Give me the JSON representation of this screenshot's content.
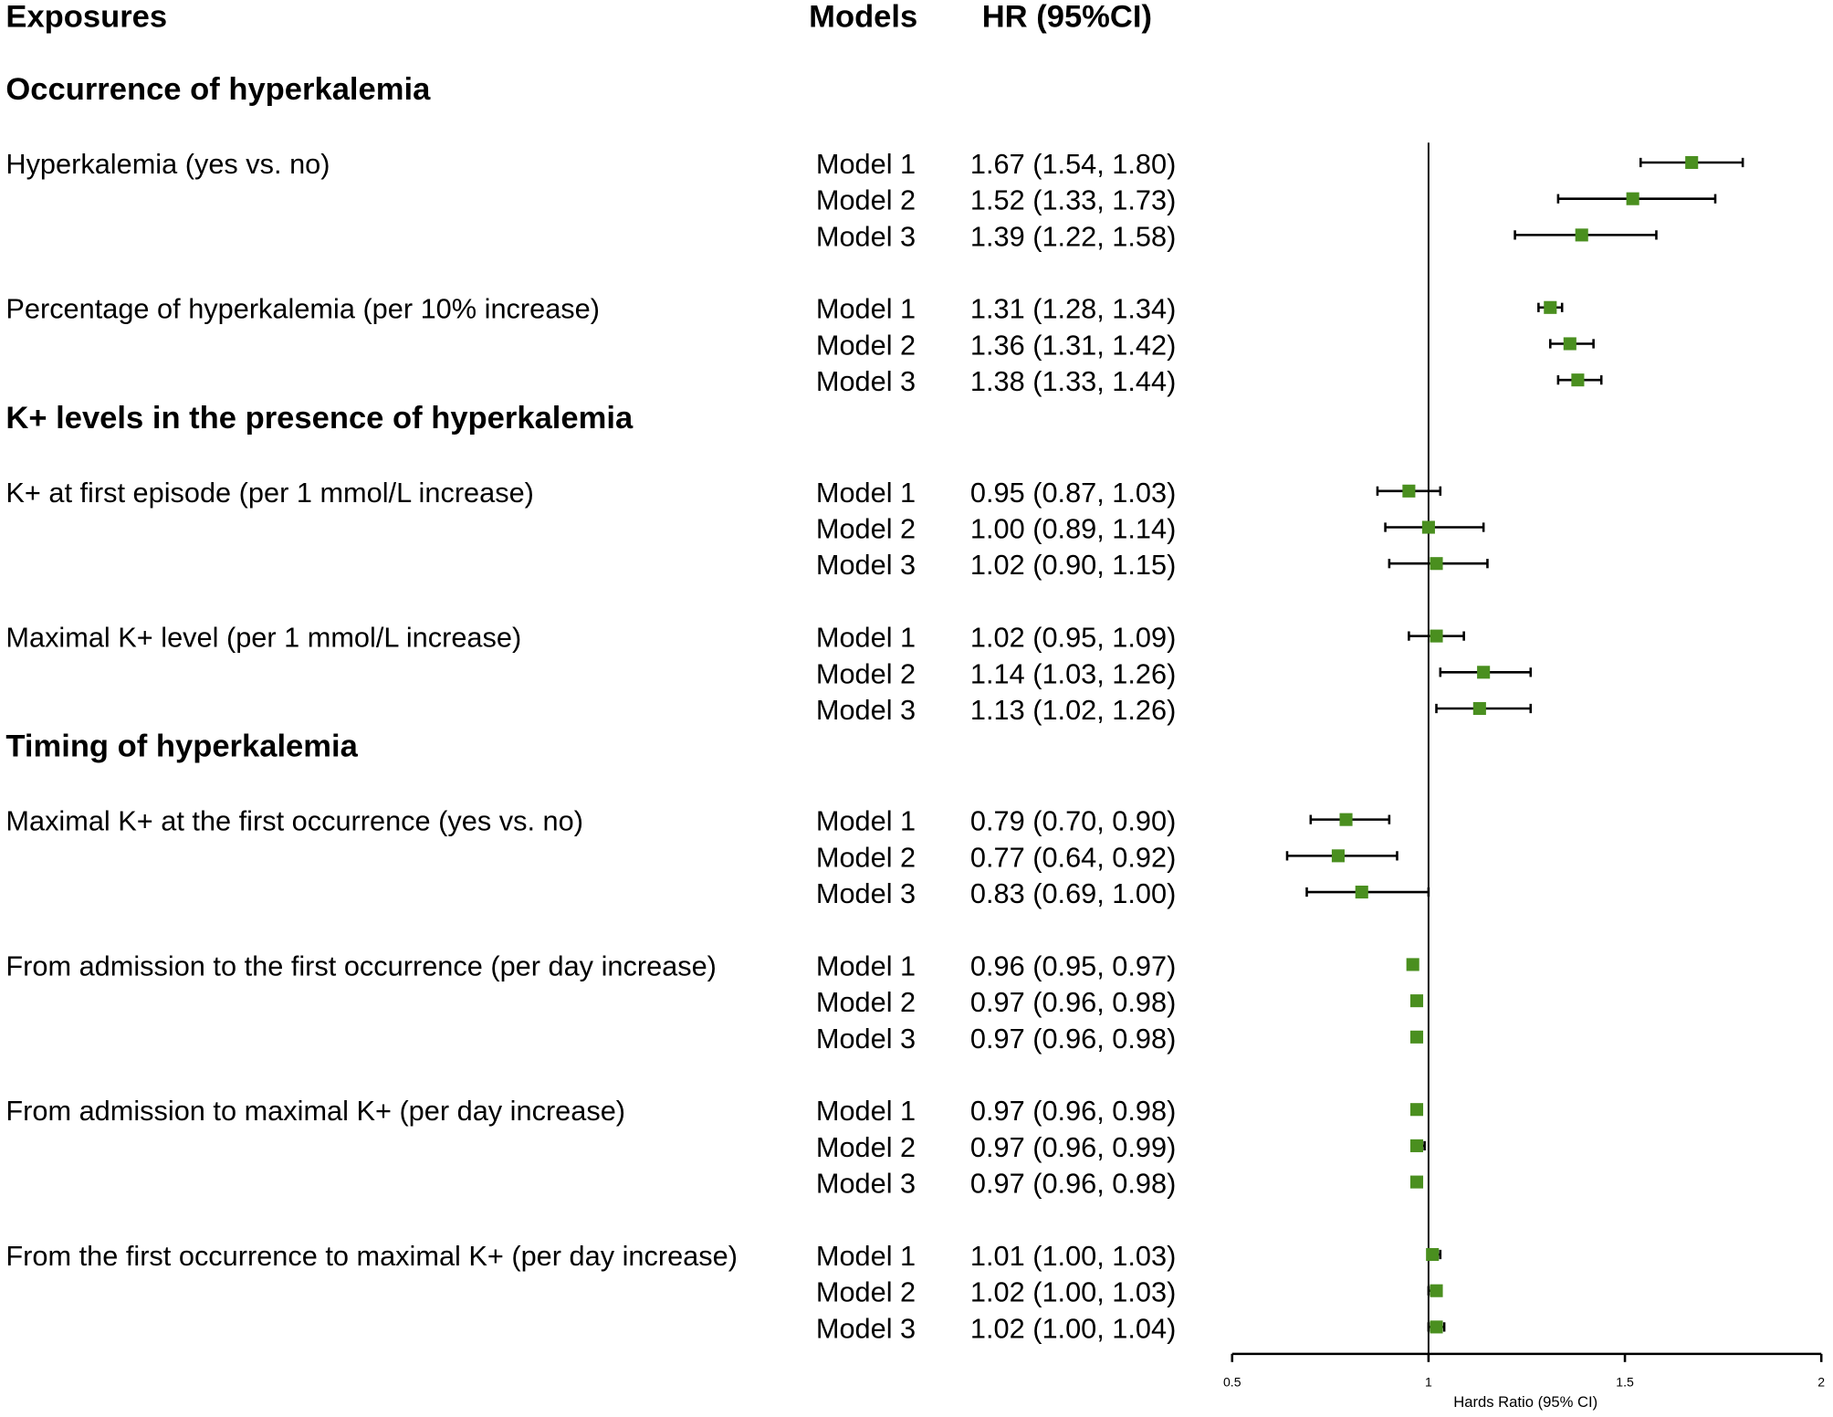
{
  "chart_data": {
    "type": "forest",
    "headers": {
      "exposures": "Exposures",
      "models": "Models",
      "hr": "HR (95%CI)"
    },
    "xlabel": "Hards Ratio (95% CI)",
    "xlim": [
      0.5,
      2
    ],
    "xticks": [
      0.5,
      1,
      1.5,
      2
    ],
    "reference": 1,
    "color": "#4a8f1f",
    "sections": [
      {
        "title": "Occurrence of hyperkalemia",
        "exposures": [
          {
            "label": "Hyperkalemia (yes vs. no)",
            "models": [
              {
                "name": "Model 1",
                "label": "1.67 (1.54, 1.80)",
                "values": [
                  1.67,
                  1.54,
                  1.8
                ]
              },
              {
                "name": "Model 2",
                "label": "1.52 (1.33, 1.73)",
                "values": [
                  1.52,
                  1.33,
                  1.73
                ]
              },
              {
                "name": "Model 3",
                "label": "1.39 (1.22, 1.58)",
                "values": [
                  1.39,
                  1.22,
                  1.58
                ]
              }
            ]
          },
          {
            "label": "Percentage of hyperkalemia (per 10% increase)",
            "models": [
              {
                "name": "Model 1",
                "label": "1.31 (1.28, 1.34)",
                "values": [
                  1.31,
                  1.28,
                  1.34
                ]
              },
              {
                "name": "Model 2",
                "label": "1.36 (1.31, 1.42)",
                "values": [
                  1.36,
                  1.31,
                  1.42
                ]
              },
              {
                "name": "Model 3",
                "label": "1.38 (1.33, 1.44)",
                "values": [
                  1.38,
                  1.33,
                  1.44
                ]
              }
            ]
          }
        ]
      },
      {
        "title": "K+ levels in the presence of hyperkalemia",
        "exposures": [
          {
            "label": "K+ at first episode (per 1 mmol/L increase)",
            "models": [
              {
                "name": "Model 1",
                "label": "0.95 (0.87, 1.03)",
                "values": [
                  0.95,
                  0.87,
                  1.03
                ]
              },
              {
                "name": "Model 2",
                "label": "1.00 (0.89, 1.14)",
                "values": [
                  1.0,
                  0.89,
                  1.14
                ]
              },
              {
                "name": "Model 3",
                "label": "1.02 (0.90, 1.15)",
                "values": [
                  1.02,
                  0.9,
                  1.15
                ]
              }
            ]
          },
          {
            "label": "Maximal K+ level (per 1 mmol/L increase)",
            "models": [
              {
                "name": "Model 1",
                "label": "1.02 (0.95, 1.09)",
                "values": [
                  1.02,
                  0.95,
                  1.09
                ]
              },
              {
                "name": "Model 2",
                "label": "1.14 (1.03, 1.26)",
                "values": [
                  1.14,
                  1.03,
                  1.26
                ]
              },
              {
                "name": "Model 3",
                "label": "1.13 (1.02, 1.26)",
                "values": [
                  1.13,
                  1.02,
                  1.26
                ]
              }
            ]
          }
        ]
      },
      {
        "title": "Timing of hyperkalemia",
        "exposures": [
          {
            "label": "Maximal K+ at the first occurrence (yes vs. no)",
            "models": [
              {
                "name": "Model 1",
                "label": "0.79 (0.70, 0.90)",
                "values": [
                  0.79,
                  0.7,
                  0.9
                ]
              },
              {
                "name": "Model 2",
                "label": "0.77 (0.64, 0.92)",
                "values": [
                  0.77,
                  0.64,
                  0.92
                ]
              },
              {
                "name": "Model 3",
                "label": "0.83 (0.69, 1.00)",
                "values": [
                  0.83,
                  0.69,
                  1.0
                ]
              }
            ]
          },
          {
            "label": "From admission to the first occurrence (per day increase)",
            "models": [
              {
                "name": "Model 1",
                "label": "0.96 (0.95, 0.97)",
                "values": [
                  0.96,
                  0.95,
                  0.97
                ]
              },
              {
                "name": "Model 2",
                "label": "0.97 (0.96, 0.98)",
                "values": [
                  0.97,
                  0.96,
                  0.98
                ]
              },
              {
                "name": "Model 3",
                "label": "0.97 (0.96, 0.98)",
                "values": [
                  0.97,
                  0.96,
                  0.98
                ]
              }
            ]
          },
          {
            "label": "From admission to maximal K+ (per day increase)",
            "models": [
              {
                "name": "Model 1",
                "label": "0.97 (0.96, 0.98)",
                "values": [
                  0.97,
                  0.96,
                  0.98
                ]
              },
              {
                "name": "Model 2",
                "label": "0.97 (0.96, 0.99)",
                "values": [
                  0.97,
                  0.96,
                  0.99
                ]
              },
              {
                "name": "Model 3",
                "label": "0.97 (0.96, 0.98)",
                "values": [
                  0.97,
                  0.96,
                  0.98
                ]
              }
            ]
          },
          {
            "label": "From the first occurrence to maximal K+ (per day increase)",
            "models": [
              {
                "name": "Model 1",
                "label": "1.01 (1.00, 1.03)",
                "values": [
                  1.01,
                  1.0,
                  1.03
                ]
              },
              {
                "name": "Model 2",
                "label": "1.02 (1.00, 1.03)",
                "values": [
                  1.02,
                  1.0,
                  1.03
                ]
              },
              {
                "name": "Model 3",
                "label": "1.02 (1.00, 1.04)",
                "values": [
                  1.02,
                  1.0,
                  1.04
                ]
              }
            ]
          }
        ]
      }
    ]
  }
}
